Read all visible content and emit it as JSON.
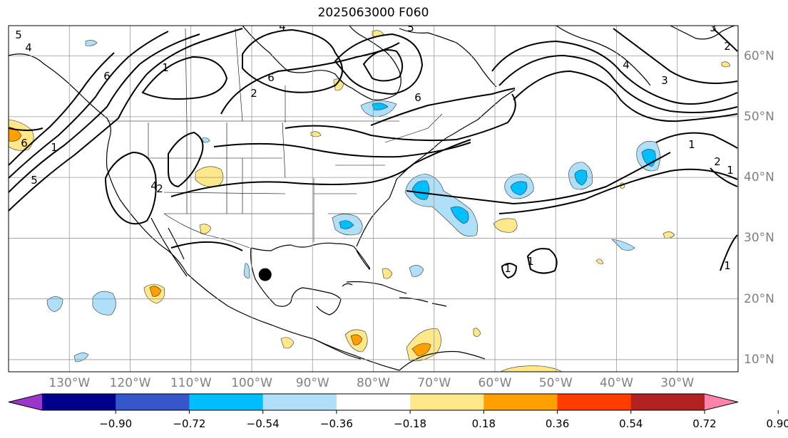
{
  "title": "2025063000 F060",
  "map": {
    "lon_range": [
      -140,
      -20
    ],
    "lat_range": [
      8,
      65
    ],
    "lon_labels": [
      "130°W",
      "120°W",
      "110°W",
      "100°W",
      "90°W",
      "80°W",
      "70°W",
      "60°W",
      "50°W",
      "40°W",
      "30°W"
    ],
    "lon_values": [
      -130,
      -120,
      -110,
      -100,
      -90,
      -80,
      -70,
      -60,
      -50,
      -40,
      -30
    ],
    "lat_labels": [
      "60°N",
      "50°N",
      "40°N",
      "30°N",
      "20°N",
      "10°N"
    ],
    "lat_values": [
      60,
      50,
      40,
      30,
      20,
      10
    ],
    "gridlines": true,
    "marker": {
      "lon": -97.8,
      "lat": 24.0,
      "color": "#000000"
    },
    "contour_labels": [
      "5",
      "4",
      "6",
      "1",
      "6",
      "4",
      "5",
      "6",
      "4",
      "3",
      "2",
      "1",
      "5",
      "6",
      "1",
      "2",
      "4",
      "2",
      "1",
      "1",
      "1",
      "3",
      "2",
      "1"
    ]
  },
  "colorbar": {
    "tick_labels": [
      "−0.90",
      "−0.72",
      "−0.54",
      "−0.36",
      "−0.18",
      "0.18",
      "0.36",
      "0.54",
      "0.72",
      "0.90"
    ],
    "tick_values": [
      -0.9,
      -0.72,
      -0.54,
      -0.36,
      -0.18,
      0.18,
      0.36,
      0.54,
      0.72,
      0.9
    ],
    "colors": [
      "#9a36c9",
      "#00008b",
      "#3657c9",
      "#00bfff",
      "#afdff9",
      "#ffffff",
      "#ffe88a",
      "#ff9f00",
      "#ff3c00",
      "#b22222",
      "#ff82aa"
    ]
  }
}
